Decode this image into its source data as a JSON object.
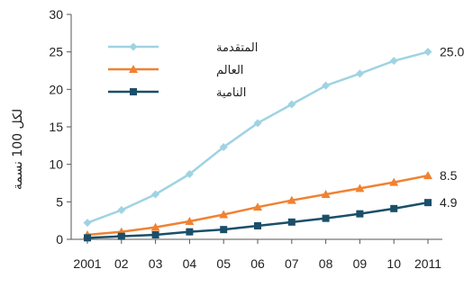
{
  "chart_data": {
    "type": "line",
    "x_tick_labels": [
      "2001",
      "02",
      "03",
      "04",
      "05",
      "06",
      "07",
      "08",
      "09",
      "10",
      "2011"
    ],
    "y_ticks": [
      "0",
      "5",
      "10",
      "15",
      "20",
      "25",
      "30"
    ],
    "ylim": [
      0,
      30
    ],
    "ylabel": "لكل 100 نسمة",
    "grid": false,
    "legend_position": "top-left",
    "series": [
      {
        "name": "المتقدمة",
        "color": "#9fd3e3",
        "marker": "diamond",
        "values": [
          2.2,
          3.9,
          6.0,
          8.7,
          12.3,
          15.5,
          18.0,
          20.5,
          22.1,
          23.8,
          25.0
        ],
        "end_label": "25.0"
      },
      {
        "name": "العالم",
        "color": "#f08232",
        "marker": "triangle",
        "values": [
          0.6,
          1.0,
          1.6,
          2.4,
          3.3,
          4.3,
          5.2,
          6.0,
          6.8,
          7.6,
          8.5
        ],
        "end_label": "8.5"
      },
      {
        "name": "النامية",
        "color": "#1b4f69",
        "marker": "square",
        "values": [
          0.2,
          0.4,
          0.6,
          1.0,
          1.3,
          1.8,
          2.3,
          2.8,
          3.4,
          4.1,
          4.9
        ],
        "end_label": "4.9"
      }
    ]
  }
}
